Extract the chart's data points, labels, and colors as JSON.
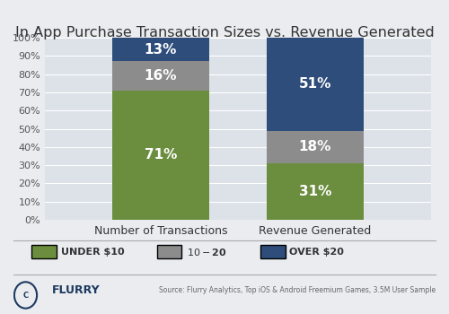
{
  "title": "In App Purchase Transaction Sizes vs. Revenue Generated",
  "categories": [
    "Number of Transactions",
    "Revenue Generated"
  ],
  "series": [
    {
      "label": "UNDER $10",
      "color": "#6b8e3e",
      "values": [
        71,
        31
      ]
    },
    {
      "label": "$10 - $20",
      "color": "#8c8c8c",
      "values": [
        16,
        18
      ]
    },
    {
      "label": "OVER $20",
      "color": "#2e4d7b",
      "values": [
        13,
        51
      ]
    }
  ],
  "bar_labels": [
    [
      "71%",
      "16%",
      "13%"
    ],
    [
      "31%",
      "18%",
      "51%"
    ]
  ],
  "ylim": [
    0,
    100
  ],
  "yticks": [
    0,
    10,
    20,
    30,
    40,
    50,
    60,
    70,
    80,
    90,
    100
  ],
  "background_color": "#eaecf0",
  "plot_bg_color": "#dde1e8",
  "header_color": "#1e3a5f",
  "title_fontsize": 11.5,
  "label_fontsize": 11,
  "tick_fontsize": 8,
  "legend_fontsize": 8,
  "source_text": "Source: Flurry Analytics, Top iOS & Android Freemium Games, 3.5M User Sample",
  "footer_left": "FLURRY",
  "bar_width": 0.25,
  "x_positions": [
    0.3,
    0.7
  ]
}
